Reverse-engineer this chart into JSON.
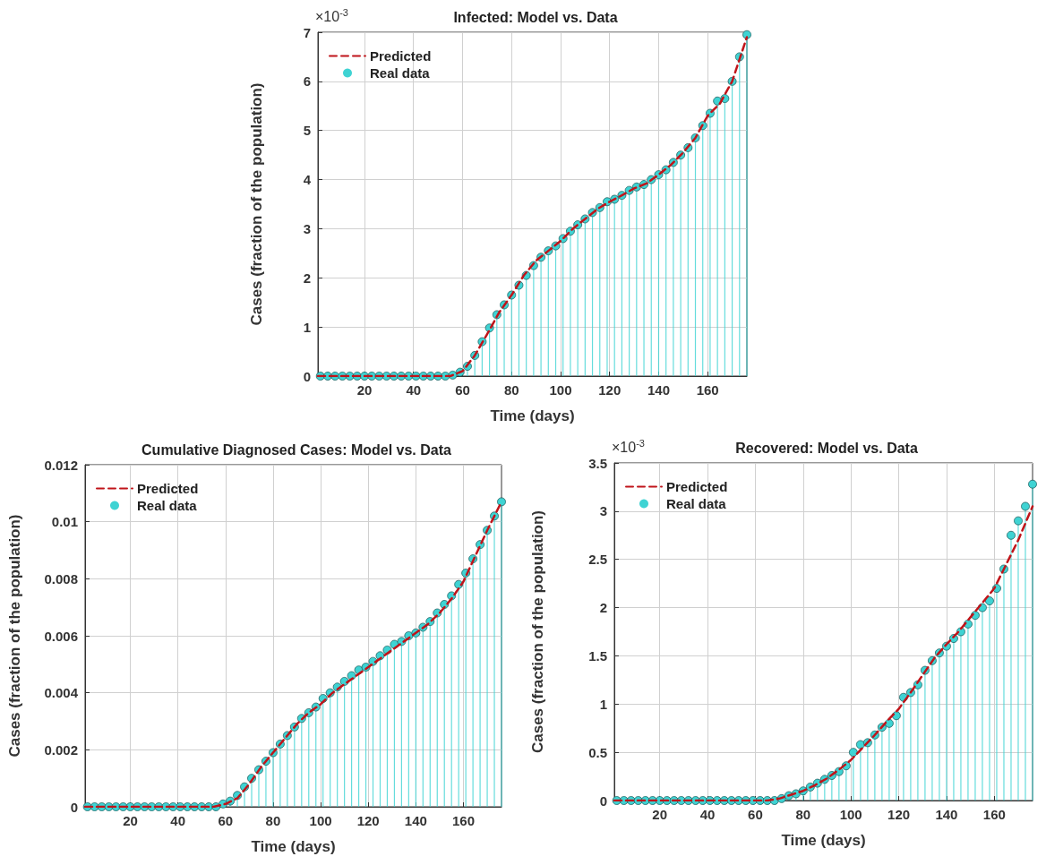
{
  "chart_data": [
    {
      "type": "lollipop",
      "title": "Infected: Model vs. Data",
      "xlabel": "Time (days)",
      "ylabel": "Cases (fraction of the population)",
      "annotations": [
        "×10$^{-3}$"
      ],
      "xlim": [
        1,
        176
      ],
      "xticks": [
        20,
        40,
        60,
        80,
        100,
        120,
        140,
        160
      ],
      "ylim": [
        0,
        7
      ],
      "yticks": [
        0,
        1,
        2,
        3,
        4,
        5,
        6,
        7
      ],
      "grid": true,
      "legend": "top left",
      "series": [
        {
          "name": "Predicted",
          "type": "line",
          "color": "#c0141a",
          "line_style": "dashed",
          "marker": "none",
          "x": [
            1,
            10,
            20,
            30,
            40,
            50,
            55,
            60,
            65,
            70,
            75,
            80,
            85,
            90,
            95,
            100,
            105,
            110,
            115,
            120,
            125,
            130,
            135,
            140,
            145,
            150,
            155,
            160,
            165,
            170,
            176
          ],
          "values": [
            0,
            0,
            0,
            0,
            0,
            0,
            0,
            0.1,
            0.42,
            0.85,
            1.3,
            1.65,
            2.05,
            2.35,
            2.55,
            2.75,
            3.0,
            3.2,
            3.4,
            3.55,
            3.68,
            3.82,
            3.92,
            4.1,
            4.3,
            4.55,
            4.85,
            5.3,
            5.55,
            6.0,
            6.9
          ]
        },
        {
          "name": "Real data",
          "color": "#3fd3d3",
          "marker": "circle",
          "x": [
            2,
            5,
            8,
            11,
            14,
            17,
            20,
            23,
            26,
            29,
            32,
            35,
            38,
            41,
            44,
            47,
            50,
            53,
            56,
            59,
            62,
            65,
            68,
            71,
            74,
            77,
            80,
            83,
            86,
            89,
            92,
            95,
            98,
            101,
            104,
            107,
            110,
            113,
            116,
            119,
            122,
            125,
            128,
            131,
            134,
            137,
            140,
            143,
            146,
            149,
            152,
            155,
            158,
            161,
            164,
            167,
            170,
            173,
            176
          ],
          "values": [
            0,
            0,
            0,
            0,
            0,
            0,
            0,
            0,
            0,
            0,
            0,
            0,
            0,
            0,
            0,
            0,
            0,
            0,
            0.02,
            0.08,
            0.2,
            0.42,
            0.7,
            0.98,
            1.25,
            1.45,
            1.65,
            1.85,
            2.05,
            2.25,
            2.42,
            2.55,
            2.65,
            2.8,
            2.95,
            3.08,
            3.2,
            3.33,
            3.43,
            3.55,
            3.6,
            3.68,
            3.78,
            3.85,
            3.9,
            4.0,
            4.1,
            4.2,
            4.35,
            4.5,
            4.65,
            4.85,
            5.1,
            5.35,
            5.6,
            5.65,
            6.0,
            6.5,
            6.95
          ]
        }
      ]
    },
    {
      "type": "lollipop",
      "title": "Cumulative Diagnosed Cases: Model vs. Data",
      "xlabel": "Time (days)",
      "ylabel": "Cases (fraction of the population)",
      "xlim": [
        1,
        176
      ],
      "xticks": [
        20,
        40,
        60,
        80,
        100,
        120,
        140,
        160
      ],
      "ylim": [
        0,
        0.012
      ],
      "yticks": [
        0,
        0.002,
        0.004,
        0.006,
        0.008,
        0.01,
        0.012
      ],
      "grid": true,
      "legend": "top left",
      "series": [
        {
          "name": "Predicted",
          "type": "line",
          "color": "#c0141a",
          "line_style": "dashed",
          "marker": "none",
          "x": [
            1,
            10,
            20,
            30,
            40,
            50,
            55,
            60,
            65,
            70,
            75,
            80,
            85,
            90,
            95,
            100,
            105,
            110,
            115,
            120,
            125,
            130,
            135,
            140,
            145,
            150,
            155,
            160,
            165,
            170,
            176
          ],
          "values": [
            0,
            0,
            0,
            0,
            0,
            0,
            0,
            0.0001,
            0.0003,
            0.0008,
            0.0014,
            0.0019,
            0.0024,
            0.0029,
            0.0033,
            0.0036,
            0.004,
            0.0043,
            0.0046,
            0.0049,
            0.0052,
            0.0055,
            0.0058,
            0.0061,
            0.0064,
            0.0068,
            0.0073,
            0.0079,
            0.0088,
            0.0097,
            0.0107
          ]
        },
        {
          "name": "Real data",
          "color": "#3fd3d3",
          "marker": "circle",
          "x": [
            2,
            5,
            8,
            11,
            14,
            17,
            20,
            23,
            26,
            29,
            32,
            35,
            38,
            41,
            44,
            47,
            50,
            53,
            56,
            59,
            62,
            65,
            68,
            71,
            74,
            77,
            80,
            83,
            86,
            89,
            92,
            95,
            98,
            101,
            104,
            107,
            110,
            113,
            116,
            119,
            122,
            125,
            128,
            131,
            134,
            137,
            140,
            143,
            146,
            149,
            152,
            155,
            158,
            161,
            164,
            167,
            170,
            173,
            176
          ],
          "values": [
            0,
            0,
            0,
            0,
            0,
            0,
            0,
            0,
            0,
            0,
            0,
            0,
            0,
            0,
            0,
            0,
            0,
            0,
            0,
            0.0001,
            0.0002,
            0.0004,
            0.0007,
            0.001,
            0.0013,
            0.0016,
            0.0019,
            0.0022,
            0.0025,
            0.0028,
            0.0031,
            0.0033,
            0.0035,
            0.0038,
            0.004,
            0.0042,
            0.0044,
            0.0046,
            0.0048,
            0.0049,
            0.0051,
            0.0053,
            0.0055,
            0.0057,
            0.0058,
            0.006,
            0.0061,
            0.0063,
            0.0065,
            0.0068,
            0.0071,
            0.0074,
            0.0078,
            0.0082,
            0.0087,
            0.0092,
            0.0097,
            0.0102,
            0.0107
          ]
        }
      ]
    },
    {
      "type": "lollipop",
      "title": "Recovered: Model vs. Data",
      "xlabel": "Time (days)",
      "ylabel": "Cases (fraction of the population)",
      "annotations": [
        "×10$^{-3}$"
      ],
      "xlim": [
        1,
        176
      ],
      "xticks": [
        20,
        40,
        60,
        80,
        100,
        120,
        140,
        160
      ],
      "ylim": [
        0,
        3.5
      ],
      "yticks": [
        0,
        0.5,
        1,
        1.5,
        2,
        2.5,
        3,
        3.5
      ],
      "grid": true,
      "legend": "top left",
      "series": [
        {
          "name": "Predicted",
          "type": "line",
          "color": "#c0141a",
          "line_style": "dashed",
          "marker": "none",
          "x": [
            1,
            10,
            20,
            30,
            40,
            50,
            55,
            60,
            65,
            70,
            75,
            80,
            85,
            90,
            95,
            100,
            105,
            110,
            115,
            120,
            125,
            130,
            135,
            140,
            145,
            150,
            155,
            160,
            165,
            170,
            176
          ],
          "values": [
            0,
            0,
            0,
            0,
            0,
            0,
            0,
            0,
            0,
            0.02,
            0.06,
            0.1,
            0.16,
            0.23,
            0.32,
            0.42,
            0.55,
            0.68,
            0.82,
            0.95,
            1.12,
            1.3,
            1.48,
            1.62,
            1.75,
            1.9,
            2.05,
            2.2,
            2.45,
            2.7,
            3.05
          ]
        },
        {
          "name": "Real data",
          "color": "#3fd3d3",
          "marker": "circle",
          "x": [
            2,
            5,
            8,
            11,
            14,
            17,
            20,
            23,
            26,
            29,
            32,
            35,
            38,
            41,
            44,
            47,
            50,
            53,
            56,
            59,
            62,
            65,
            68,
            71,
            74,
            77,
            80,
            83,
            86,
            89,
            92,
            95,
            98,
            101,
            104,
            107,
            110,
            113,
            116,
            119,
            122,
            125,
            128,
            131,
            134,
            137,
            140,
            143,
            146,
            149,
            152,
            155,
            158,
            161,
            164,
            167,
            170,
            173,
            176
          ],
          "values": [
            0,
            0,
            0,
            0,
            0,
            0,
            0,
            0,
            0,
            0,
            0,
            0,
            0,
            0,
            0,
            0,
            0,
            0,
            0,
            0,
            0,
            0,
            0,
            0.02,
            0.05,
            0.07,
            0.1,
            0.14,
            0.18,
            0.22,
            0.26,
            0.3,
            0.36,
            0.5,
            0.58,
            0.6,
            0.68,
            0.76,
            0.8,
            0.88,
            1.07,
            1.12,
            1.2,
            1.35,
            1.45,
            1.53,
            1.6,
            1.68,
            1.75,
            1.83,
            1.92,
            2.0,
            2.07,
            2.2,
            2.4,
            2.75,
            2.9,
            3.05,
            3.28
          ]
        }
      ]
    }
  ]
}
